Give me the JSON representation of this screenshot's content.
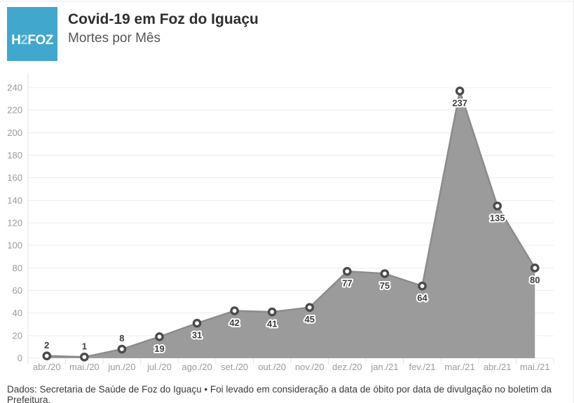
{
  "header": {
    "logo": {
      "part1": "H",
      "part2": "2",
      "part3": "FOZ",
      "bg_color": "#41a7cd",
      "accent_color": "#a6d8ec"
    },
    "title": "Covid-19 em Foz do Iguaçu",
    "subtitle": "Mortes por Mês"
  },
  "chart_data": {
    "type": "area",
    "title": "Covid-19 em Foz do Iguaçu",
    "subtitle": "Mortes por Mês",
    "categories": [
      "abr./20",
      "mai./20",
      "jun./20",
      "jul./20",
      "ago./20",
      "set./20",
      "out./20",
      "nov./20",
      "dez./20",
      "jan./21",
      "fev./21",
      "mar./21",
      "abr./21",
      "mai./21"
    ],
    "values": [
      2,
      1,
      8,
      19,
      31,
      42,
      41,
      45,
      77,
      75,
      64,
      237,
      135,
      80
    ],
    "label_above_point": [
      true,
      true,
      true,
      false,
      false,
      false,
      false,
      false,
      false,
      false,
      false,
      false,
      false,
      false
    ],
    "xlabel": "",
    "ylabel": "",
    "ylim": [
      0,
      240
    ],
    "ytick_step": 20,
    "grid": "horizontal",
    "legend": "none",
    "colors": {
      "area_fill": "#9b9b9b",
      "line": "#8c8c8c",
      "point_fill": "#ffffff",
      "point_stroke": "#4b4b4b",
      "annotation_text": "#3e3e3e",
      "axis_text": "#9b9b9b",
      "gridline": "#ececec",
      "axis_line": "#e3e3e3"
    }
  },
  "footer": {
    "text": "Dados: Secretaria de Saúde de Foz do Iguaçu • Foi levado em consideração a data de óbito por data de divulgação no boletim da Prefeitura."
  }
}
